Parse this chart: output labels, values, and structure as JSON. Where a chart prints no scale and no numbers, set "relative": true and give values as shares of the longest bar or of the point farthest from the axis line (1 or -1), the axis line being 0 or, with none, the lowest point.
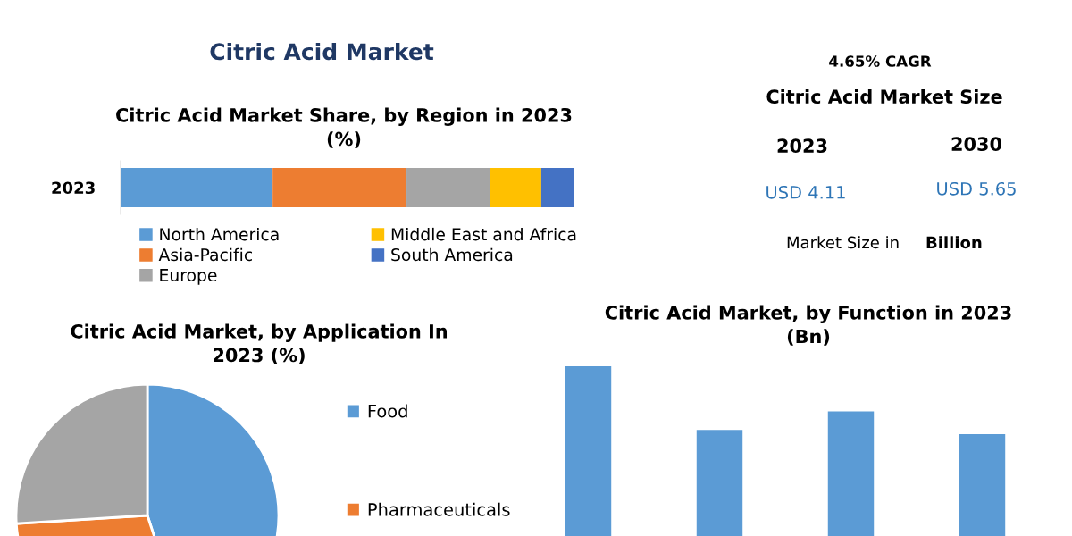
{
  "chart_data": [
    {
      "type": "bar",
      "title": "Citric Acid Market",
      "subtitle": "Citric Acid Market Share, by Region in 2023\n(%)",
      "orientation": "horizontal",
      "stacked": true,
      "relative": true,
      "legend": "bottom",
      "categories": [
        "2023"
      ],
      "series": [
        {
          "name": "North America",
          "color": "#5b9bd5",
          "values": [
            0.335
          ]
        },
        {
          "name": "Asia-Pacific",
          "color": "#ed7d31",
          "values": [
            0.295
          ]
        },
        {
          "name": "Europe",
          "color": "#a5a5a5",
          "values": [
            0.183
          ]
        },
        {
          "name": "Middle East and Africa",
          "color": "#ffc000",
          "values": [
            0.114
          ]
        },
        {
          "name": "South America",
          "color": "#4472c4",
          "values": [
            0.073
          ]
        }
      ]
    },
    {
      "type": "other",
      "title": "Citric Acid Market Size",
      "annotations": [
        "4.65% CAGR",
        "2023",
        "2030",
        "USD 4.11",
        "USD 5.65",
        "Market Size in",
        "Billion"
      ]
    },
    {
      "type": "pie",
      "title": "Citric Acid Market, by Application In\n2023 (%)",
      "legend": "right",
      "categories": [
        "Food",
        "Pharmaceuticals",
        null
      ],
      "values": [
        45,
        29,
        26
      ],
      "colors": [
        "#5b9bd5",
        "#ed7d31",
        "#a5a5a5"
      ]
    },
    {
      "type": "bar",
      "title": "Citric Acid Market, by Function in 2023\n(Bn)",
      "relative": true,
      "categories": [
        null,
        null,
        null,
        null
      ],
      "color": "#5b9bd5",
      "values": [
        1,
        0.69,
        0.78,
        0.67
      ]
    }
  ]
}
